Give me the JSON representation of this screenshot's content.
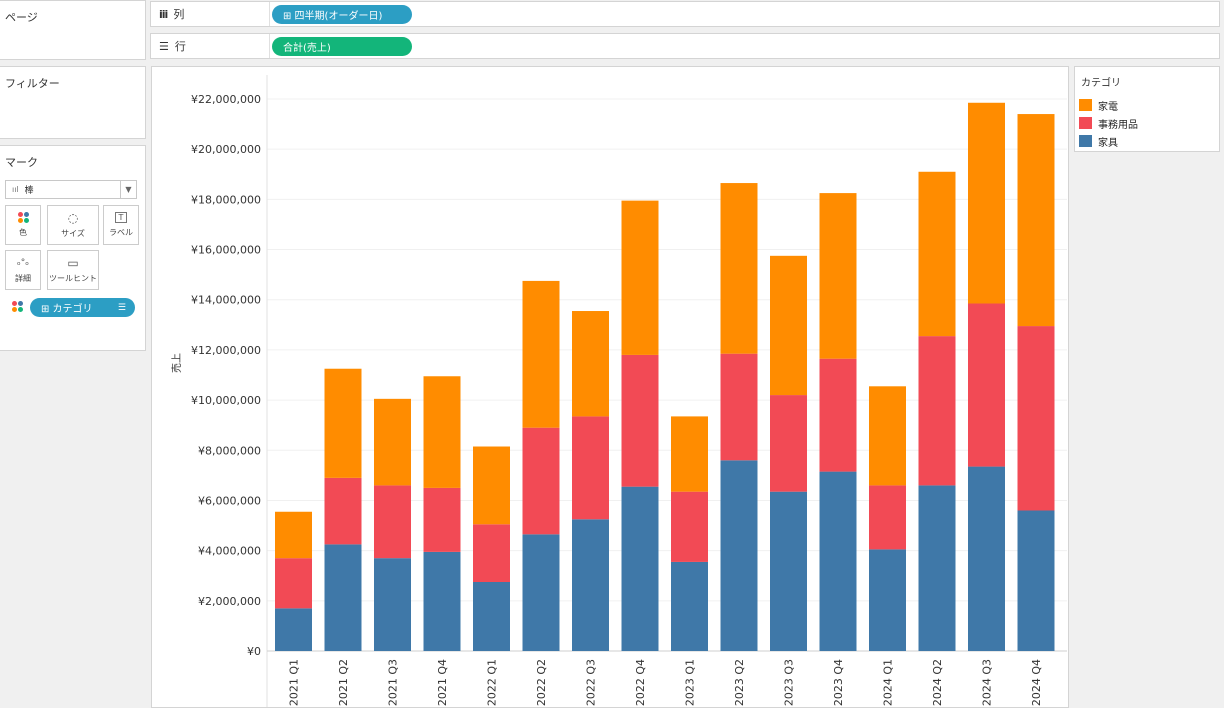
{
  "sidebar": {
    "pages_title": "ページ",
    "filters_title": "フィルター",
    "marks_title": "マーク",
    "mark_type": "棒",
    "mark_buttons": [
      {
        "label": "色",
        "icon": "color-icon"
      },
      {
        "label": "サイズ",
        "icon": "size-icon"
      },
      {
        "label": "ラベル",
        "icon": "label-icon"
      },
      {
        "label": "詳細",
        "icon": "detail-icon"
      },
      {
        "label": "ツールヒント",
        "icon": "tooltip-icon"
      }
    ],
    "color_pill": "⊞ カテゴリ"
  },
  "shelves": {
    "columns_label": "列",
    "columns_pill": "⊞ 四半期(オーダー日)",
    "rows_label": "行",
    "rows_pill": "合計(売上)"
  },
  "legend": {
    "title": "カテゴリ",
    "items": [
      {
        "label": "家電",
        "color": "#ff8c00"
      },
      {
        "label": "事務用品",
        "color": "#f24a55"
      },
      {
        "label": "家具",
        "color": "#3f78a8"
      }
    ]
  },
  "chart_data": {
    "type": "bar",
    "stacked": true,
    "ylabel": "売上",
    "ylim": [
      0,
      22000000
    ],
    "yticks": [
      "¥22,000,000",
      "¥20,000,000",
      "¥18,000,000",
      "¥16,000,000",
      "¥14,000,000",
      "¥12,000,000",
      "¥10,000,000",
      "¥8,000,000",
      "¥6,000,000",
      "¥4,000,000",
      "¥2,000,000",
      "¥0"
    ],
    "grid": true,
    "categories": [
      "2021 Q1",
      "2021 Q2",
      "2021 Q3",
      "2021 Q4",
      "2022 Q1",
      "2022 Q2",
      "2022 Q3",
      "2022 Q4",
      "2023 Q1",
      "2023 Q2",
      "2023 Q3",
      "2023 Q4",
      "2024 Q1",
      "2024 Q2",
      "2024 Q3",
      "2024 Q4"
    ],
    "series": [
      {
        "name": "家具",
        "color": "#3f78a8",
        "values": [
          1700000,
          4250000,
          3700000,
          3950000,
          2750000,
          4650000,
          5250000,
          6550000,
          3550000,
          7600000,
          6350000,
          7150000,
          4050000,
          6600000,
          7350000,
          5600000
        ]
      },
      {
        "name": "事務用品",
        "color": "#f24a55",
        "values": [
          2000000,
          2650000,
          2900000,
          2550000,
          2300000,
          4250000,
          4100000,
          5250000,
          2800000,
          4250000,
          3850000,
          4500000,
          2550000,
          5950000,
          6500000,
          7350000
        ]
      },
      {
        "name": "家電",
        "color": "#ff8c00",
        "values": [
          1850000,
          4350000,
          3450000,
          4450000,
          3100000,
          5850000,
          4200000,
          6150000,
          3000000,
          6800000,
          5550000,
          6600000,
          3950000,
          6550000,
          8000000,
          8450000
        ]
      }
    ]
  }
}
